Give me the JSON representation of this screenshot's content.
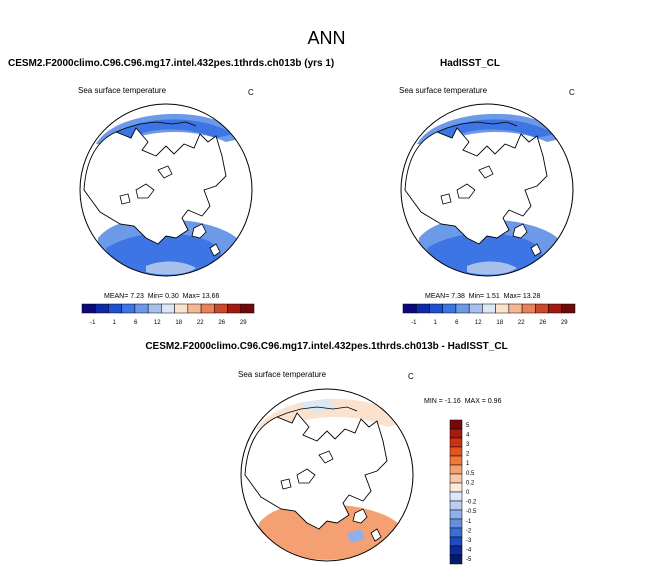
{
  "figure": {
    "title": "ANN"
  },
  "panels": {
    "model": {
      "title": "CESM2.F2000climo.C96.C96.mg17.intel.432pes.1thrds.ch013b (yrs 1)",
      "variable": "Sea surface temperature",
      "units": "C"
    },
    "obs": {
      "title": "HadISST_CL",
      "variable": "Sea surface temperature",
      "units": "C"
    },
    "diff": {
      "title": "CESM2.F2000climo.C96.C96.mg17.intel.432pes.1thrds.ch013b - HadISST_CL",
      "variable": "Sea surface temperature",
      "units": "C"
    }
  },
  "chart_data": [
    {
      "type": "heatmap",
      "projection": "north polar stereographic",
      "title": "CESM2.F2000climo.C96.C96.mg17.intel.432pes.1thrds.ch013b (yrs 1)",
      "variable": "Sea surface temperature",
      "units": "C",
      "stats": {
        "mean_label": "MEAN=",
        "mean": "7.23",
        "min_label": "Min=",
        "min": "0.30",
        "max_label": "Max=",
        "max": "13.66"
      },
      "colorbar": {
        "orientation": "horizontal",
        "ticks": [
          "-1",
          "1",
          "6",
          "12",
          "18",
          "22",
          "26",
          "29"
        ],
        "colors": [
          "#0a0a7a",
          "#102aa6",
          "#1f50d0",
          "#3d76e4",
          "#6d9ae8",
          "#a7c0ec",
          "#dde8f6",
          "#fbe2cf",
          "#f4b894",
          "#e7825c",
          "#cc4a2c",
          "#a21a12",
          "#6e0a0a"
        ]
      }
    },
    {
      "type": "heatmap",
      "projection": "north polar stereographic",
      "title": "HadISST_CL",
      "variable": "Sea surface temperature",
      "units": "C",
      "stats": {
        "mean_label": "MEAN=",
        "mean": "7.38",
        "min_label": "Min=",
        "min": "1.51",
        "max_label": "Max=",
        "max": "13.28"
      },
      "colorbar": {
        "orientation": "horizontal",
        "ticks": [
          "-1",
          "1",
          "6",
          "12",
          "18",
          "22",
          "26",
          "29"
        ],
        "colors": [
          "#0a0a7a",
          "#102aa6",
          "#1f50d0",
          "#3d76e4",
          "#6d9ae8",
          "#a7c0ec",
          "#dde8f6",
          "#fbe2cf",
          "#f4b894",
          "#e7825c",
          "#cc4a2c",
          "#a21a12",
          "#6e0a0a"
        ]
      }
    },
    {
      "type": "heatmap",
      "projection": "north polar stereographic",
      "title": "CESM2.F2000climo.C96.C96.mg17.intel.432pes.1thrds.ch013b - HadISST_CL",
      "variable": "Sea surface temperature",
      "units": "C",
      "stats": {
        "min_label": "MIN =",
        "min": "-1.16",
        "max_label": "MAX =",
        "max": "0.96"
      },
      "colorbar": {
        "orientation": "vertical",
        "ticks": [
          "5",
          "4",
          "3",
          "2",
          "1",
          "0.5",
          "0.2",
          "0",
          "-0.2",
          "-0.5",
          "-1",
          "-2",
          "-3",
          "-4",
          "-5"
        ],
        "colors": [
          "#7a0808",
          "#a61a10",
          "#cc3214",
          "#e4551e",
          "#f07a3c",
          "#f5a072",
          "#f9c7a6",
          "#fde8da",
          "#dbe7f6",
          "#b8cdf0",
          "#8eb0ea",
          "#6590e0",
          "#3a6fd8",
          "#1e4bc0",
          "#0c2a98",
          "#061a6a"
        ]
      }
    }
  ]
}
